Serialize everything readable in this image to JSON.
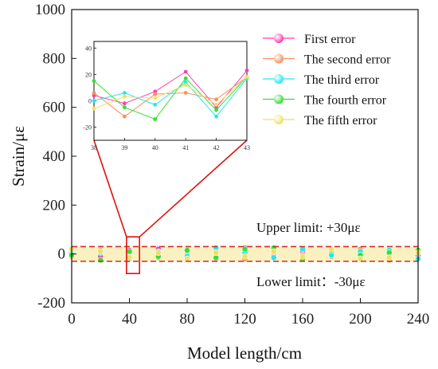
{
  "chart_data": {
    "type": "scatter",
    "title": "",
    "xlabel": "Model length/cm",
    "ylabel": "Strain/με",
    "xlim": [
      0,
      240
    ],
    "ylim": [
      -200,
      1000
    ],
    "xticks": [
      "0",
      "40",
      "80",
      "120",
      "160",
      "200",
      "240"
    ],
    "yticks": [
      "-200",
      "0",
      "200",
      "400",
      "600",
      "800",
      "1000"
    ],
    "grid": false,
    "legend_position": "top-right",
    "limits": {
      "upper": 30,
      "lower": -30,
      "upper_label": "Upper limit: +30με",
      "lower_label": "Lower limit：-30με",
      "line_color": "#d62728"
    },
    "highlight_box": {
      "x": [
        38,
        47
      ],
      "y": [
        -80,
        70
      ],
      "color": "#e01010"
    },
    "series": [
      {
        "name": "First  error",
        "color": "#ff3fb0",
        "x": [
          0,
          20,
          40,
          60,
          80,
          100,
          120,
          140,
          160,
          180,
          200,
          220,
          240
        ],
        "y": [
          5,
          -10,
          15,
          20,
          -5,
          -20,
          25,
          -10,
          10,
          5,
          -15,
          10,
          -5
        ]
      },
      {
        "name": "The second  error",
        "color": "#f79060",
        "x": [
          0,
          20,
          40,
          60,
          80,
          100,
          120,
          140,
          160,
          180,
          200,
          220,
          240
        ],
        "y": [
          -10,
          15,
          5,
          -15,
          20,
          10,
          -20,
          15,
          -5,
          -10,
          20,
          -25,
          10
        ]
      },
      {
        "name": "The third  error",
        "color": "#22e8f0",
        "x": [
          0,
          20,
          40,
          60,
          80,
          100,
          120,
          140,
          160,
          180,
          200,
          220,
          240
        ],
        "y": [
          15,
          5,
          -20,
          10,
          -10,
          25,
          5,
          -15,
          20,
          -5,
          10,
          15,
          -20
        ]
      },
      {
        "name": "The fourth  error",
        "color": "#35e035",
        "x": [
          0,
          20,
          40,
          60,
          80,
          100,
          120,
          140,
          160,
          180,
          200,
          220,
          240
        ],
        "y": [
          -5,
          -25,
          10,
          -10,
          15,
          -15,
          20,
          25,
          -20,
          15,
          -5,
          5,
          15
        ]
      },
      {
        "name": "The fifth error",
        "color": "#f0e060",
        "x": [
          0,
          20,
          40,
          60,
          80,
          100,
          120,
          140,
          160,
          180,
          200,
          220,
          240
        ],
        "y": [
          20,
          10,
          -15,
          5,
          -20,
          5,
          -10,
          10,
          -10,
          20,
          -20,
          -15,
          5
        ]
      }
    ],
    "inset": {
      "xticks": [
        "38",
        "39",
        "40",
        "41",
        "42",
        "43"
      ],
      "yticks": [
        "-20",
        "0",
        "20",
        "40"
      ],
      "xlim": [
        38,
        43
      ],
      "ylim": [
        -30,
        45
      ],
      "x": [
        38,
        39,
        40,
        41,
        42,
        43
      ],
      "series_values": [
        [
          4,
          -2,
          7,
          22,
          -5,
          23
        ],
        [
          6,
          -12,
          5,
          6,
          1,
          18
        ],
        [
          0,
          6,
          -3,
          14,
          -12,
          17
        ],
        [
          15,
          -5,
          -14,
          17,
          -7,
          18
        ],
        [
          -6,
          3,
          2,
          12,
          -3,
          18
        ]
      ]
    }
  }
}
